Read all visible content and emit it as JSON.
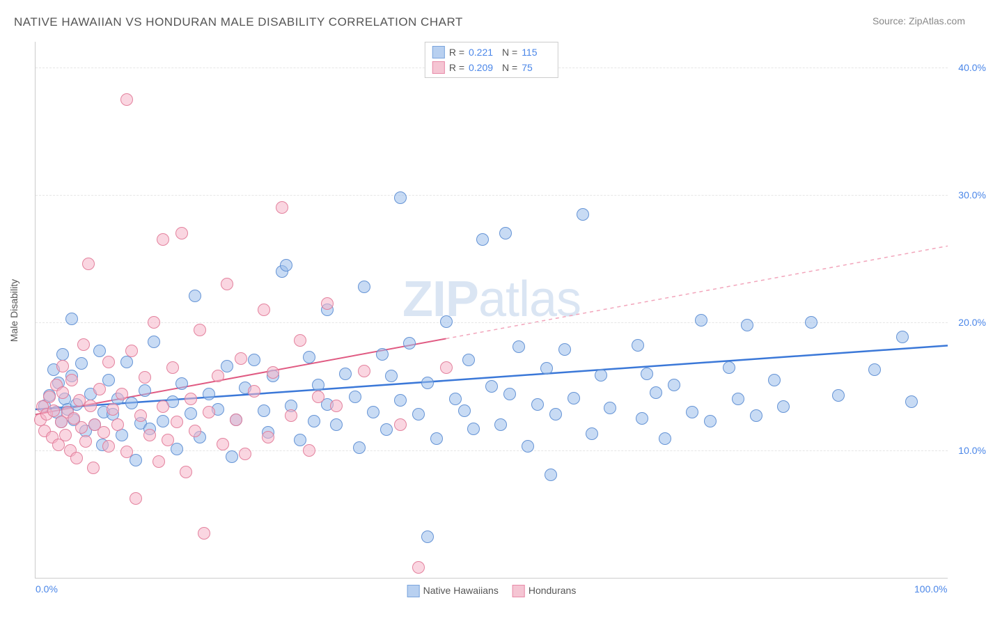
{
  "title": "NATIVE HAWAIIAN VS HONDURAN MALE DISABILITY CORRELATION CHART",
  "source": "Source: ZipAtlas.com",
  "watermark_bold": "ZIP",
  "watermark_rest": "atlas",
  "chart": {
    "type": "scatter",
    "ylabel": "Male Disability",
    "xlim": [
      0,
      100
    ],
    "ylim": [
      0,
      42
    ],
    "yticks": [
      10,
      20,
      30,
      40
    ],
    "ytick_labels": [
      "10.0%",
      "20.0%",
      "30.0%",
      "40.0%"
    ],
    "xticks": [
      0,
      100
    ],
    "xtick_labels": [
      "0.0%",
      "100.0%"
    ],
    "background_color": "#ffffff",
    "grid_color": "#e6e6e6",
    "marker_radius": 8,
    "series": [
      {
        "id": "native_hawaiians",
        "label": "Native Hawaiians",
        "fill_color": "rgba(155,190,235,0.55)",
        "stroke_color": "rgba(90,140,210,0.9)",
        "swatch_fill": "#b8d0f0",
        "swatch_stroke": "#7ba5dd",
        "R": "0.221",
        "N": "115",
        "trend": {
          "x1": 0,
          "y1": 13.2,
          "x2": 100,
          "y2": 18.2,
          "solid_until_x": 100,
          "color": "#3b78d8",
          "width": 2.5
        },
        "points": [
          [
            1,
            13.5
          ],
          [
            1.5,
            14.3
          ],
          [
            2,
            16.3
          ],
          [
            2.3,
            13.0
          ],
          [
            2.5,
            15.3
          ],
          [
            2.8,
            12.2
          ],
          [
            3,
            17.5
          ],
          [
            3.2,
            14.0
          ],
          [
            3.5,
            13.2
          ],
          [
            4,
            15.8
          ],
          [
            4,
            20.3
          ],
          [
            4.2,
            12.4
          ],
          [
            4.5,
            13.6
          ],
          [
            5,
            16.8
          ],
          [
            5.5,
            11.5
          ],
          [
            6,
            14.4
          ],
          [
            6.5,
            12.0
          ],
          [
            7,
            17.8
          ],
          [
            7.3,
            10.4
          ],
          [
            7.5,
            13.0
          ],
          [
            8,
            15.5
          ],
          [
            8.5,
            12.8
          ],
          [
            9,
            14.0
          ],
          [
            9.5,
            11.2
          ],
          [
            10,
            16.9
          ],
          [
            10.5,
            13.7
          ],
          [
            11,
            9.2
          ],
          [
            11.5,
            12.1
          ],
          [
            12,
            14.7
          ],
          [
            12.5,
            11.7
          ],
          [
            13,
            18.5
          ],
          [
            14,
            12.3
          ],
          [
            15,
            13.8
          ],
          [
            15.5,
            10.1
          ],
          [
            16,
            15.2
          ],
          [
            17,
            12.9
          ],
          [
            17.5,
            22.1
          ],
          [
            18,
            11.0
          ],
          [
            19,
            14.4
          ],
          [
            20,
            13.2
          ],
          [
            21,
            16.6
          ],
          [
            21.5,
            9.5
          ],
          [
            22,
            12.4
          ],
          [
            23,
            14.9
          ],
          [
            24,
            17.1
          ],
          [
            25,
            13.1
          ],
          [
            25.5,
            11.4
          ],
          [
            26,
            15.8
          ],
          [
            27,
            24.0
          ],
          [
            27.5,
            24.5
          ],
          [
            28,
            13.5
          ],
          [
            29,
            10.8
          ],
          [
            30,
            17.3
          ],
          [
            30.5,
            12.3
          ],
          [
            31,
            15.1
          ],
          [
            32,
            13.6
          ],
          [
            32,
            21.0
          ],
          [
            33,
            12.0
          ],
          [
            34,
            16.0
          ],
          [
            35,
            14.2
          ],
          [
            35.5,
            10.2
          ],
          [
            36,
            22.8
          ],
          [
            37,
            13.0
          ],
          [
            38,
            17.5
          ],
          [
            38.5,
            11.6
          ],
          [
            39,
            15.8
          ],
          [
            40,
            29.8
          ],
          [
            40,
            13.9
          ],
          [
            41,
            18.4
          ],
          [
            42,
            12.8
          ],
          [
            43,
            3.2
          ],
          [
            43,
            15.3
          ],
          [
            44,
            10.9
          ],
          [
            45,
            20.1
          ],
          [
            46,
            14.0
          ],
          [
            47,
            13.1
          ],
          [
            47.5,
            17.1
          ],
          [
            48,
            11.7
          ],
          [
            49,
            26.5
          ],
          [
            50,
            15.0
          ],
          [
            51,
            12.0
          ],
          [
            51.5,
            27.0
          ],
          [
            52,
            14.4
          ],
          [
            53,
            18.1
          ],
          [
            54,
            10.3
          ],
          [
            55,
            13.6
          ],
          [
            56,
            16.4
          ],
          [
            56.5,
            8.1
          ],
          [
            57,
            12.8
          ],
          [
            58,
            17.9
          ],
          [
            59,
            14.1
          ],
          [
            60,
            28.5
          ],
          [
            61,
            11.3
          ],
          [
            62,
            15.9
          ],
          [
            63,
            13.3
          ],
          [
            66,
            18.2
          ],
          [
            66.5,
            12.5
          ],
          [
            67,
            16.0
          ],
          [
            68,
            14.5
          ],
          [
            69,
            10.9
          ],
          [
            70,
            15.1
          ],
          [
            72,
            13.0
          ],
          [
            73,
            20.2
          ],
          [
            74,
            12.3
          ],
          [
            76,
            16.5
          ],
          [
            77,
            14.0
          ],
          [
            78,
            19.8
          ],
          [
            79,
            12.7
          ],
          [
            81,
            15.5
          ],
          [
            82,
            13.4
          ],
          [
            85,
            20.0
          ],
          [
            88,
            14.3
          ],
          [
            92,
            16.3
          ],
          [
            95,
            18.9
          ],
          [
            96,
            13.8
          ]
        ]
      },
      {
        "id": "hondurans",
        "label": "Hondurans",
        "fill_color": "rgba(245,180,200,0.55)",
        "stroke_color": "rgba(225,120,150,0.9)",
        "swatch_fill": "#f5c5d3",
        "swatch_stroke": "#e88aa8",
        "R": "0.209",
        "N": "75",
        "trend": {
          "x1": 0,
          "y1": 12.8,
          "x2": 100,
          "y2": 26.0,
          "solid_until_x": 45,
          "color": "#e05a82",
          "width": 2,
          "dash_color": "#f2a5bb"
        },
        "points": [
          [
            0.5,
            12.4
          ],
          [
            0.8,
            13.4
          ],
          [
            1,
            11.5
          ],
          [
            1.2,
            12.8
          ],
          [
            1.5,
            14.2
          ],
          [
            1.8,
            11.0
          ],
          [
            2,
            13.1
          ],
          [
            2.3,
            15.1
          ],
          [
            2.5,
            10.4
          ],
          [
            2.8,
            12.2
          ],
          [
            3,
            14.5
          ],
          [
            3,
            16.6
          ],
          [
            3.3,
            11.2
          ],
          [
            3.5,
            13.0
          ],
          [
            3.8,
            10.0
          ],
          [
            4,
            15.5
          ],
          [
            4.2,
            12.5
          ],
          [
            4.5,
            9.4
          ],
          [
            4.8,
            13.9
          ],
          [
            5,
            11.8
          ],
          [
            5.3,
            18.3
          ],
          [
            5.5,
            10.7
          ],
          [
            5.8,
            24.6
          ],
          [
            6,
            13.5
          ],
          [
            6.3,
            8.6
          ],
          [
            6.5,
            12.0
          ],
          [
            7,
            14.8
          ],
          [
            7.5,
            11.4
          ],
          [
            8,
            16.9
          ],
          [
            8,
            10.3
          ],
          [
            8.5,
            13.2
          ],
          [
            9,
            12.0
          ],
          [
            9.5,
            14.4
          ],
          [
            10,
            9.9
          ],
          [
            10,
            37.5
          ],
          [
            10.5,
            17.8
          ],
          [
            11,
            6.2
          ],
          [
            11.5,
            12.7
          ],
          [
            12,
            15.7
          ],
          [
            12.5,
            11.2
          ],
          [
            13,
            20.0
          ],
          [
            13.5,
            9.1
          ],
          [
            14,
            13.4
          ],
          [
            14,
            26.5
          ],
          [
            14.5,
            10.8
          ],
          [
            15,
            16.5
          ],
          [
            15.5,
            12.2
          ],
          [
            16,
            27.0
          ],
          [
            16.5,
            8.3
          ],
          [
            17,
            14.0
          ],
          [
            17.5,
            11.5
          ],
          [
            18,
            19.4
          ],
          [
            18.5,
            3.5
          ],
          [
            19,
            13.0
          ],
          [
            20,
            15.8
          ],
          [
            20.5,
            10.5
          ],
          [
            21,
            23.0
          ],
          [
            22,
            12.4
          ],
          [
            22.5,
            17.2
          ],
          [
            23,
            9.7
          ],
          [
            24,
            14.6
          ],
          [
            25,
            21.0
          ],
          [
            25.5,
            11.0
          ],
          [
            26,
            16.1
          ],
          [
            27,
            29.0
          ],
          [
            28,
            12.7
          ],
          [
            29,
            18.6
          ],
          [
            30,
            10.0
          ],
          [
            31,
            14.2
          ],
          [
            32,
            21.5
          ],
          [
            33,
            13.5
          ],
          [
            36,
            16.2
          ],
          [
            40,
            12.0
          ],
          [
            42,
            0.8
          ],
          [
            45,
            16.5
          ]
        ]
      }
    ],
    "legend_top": {
      "R_label": "R =",
      "N_label": "N ="
    }
  }
}
